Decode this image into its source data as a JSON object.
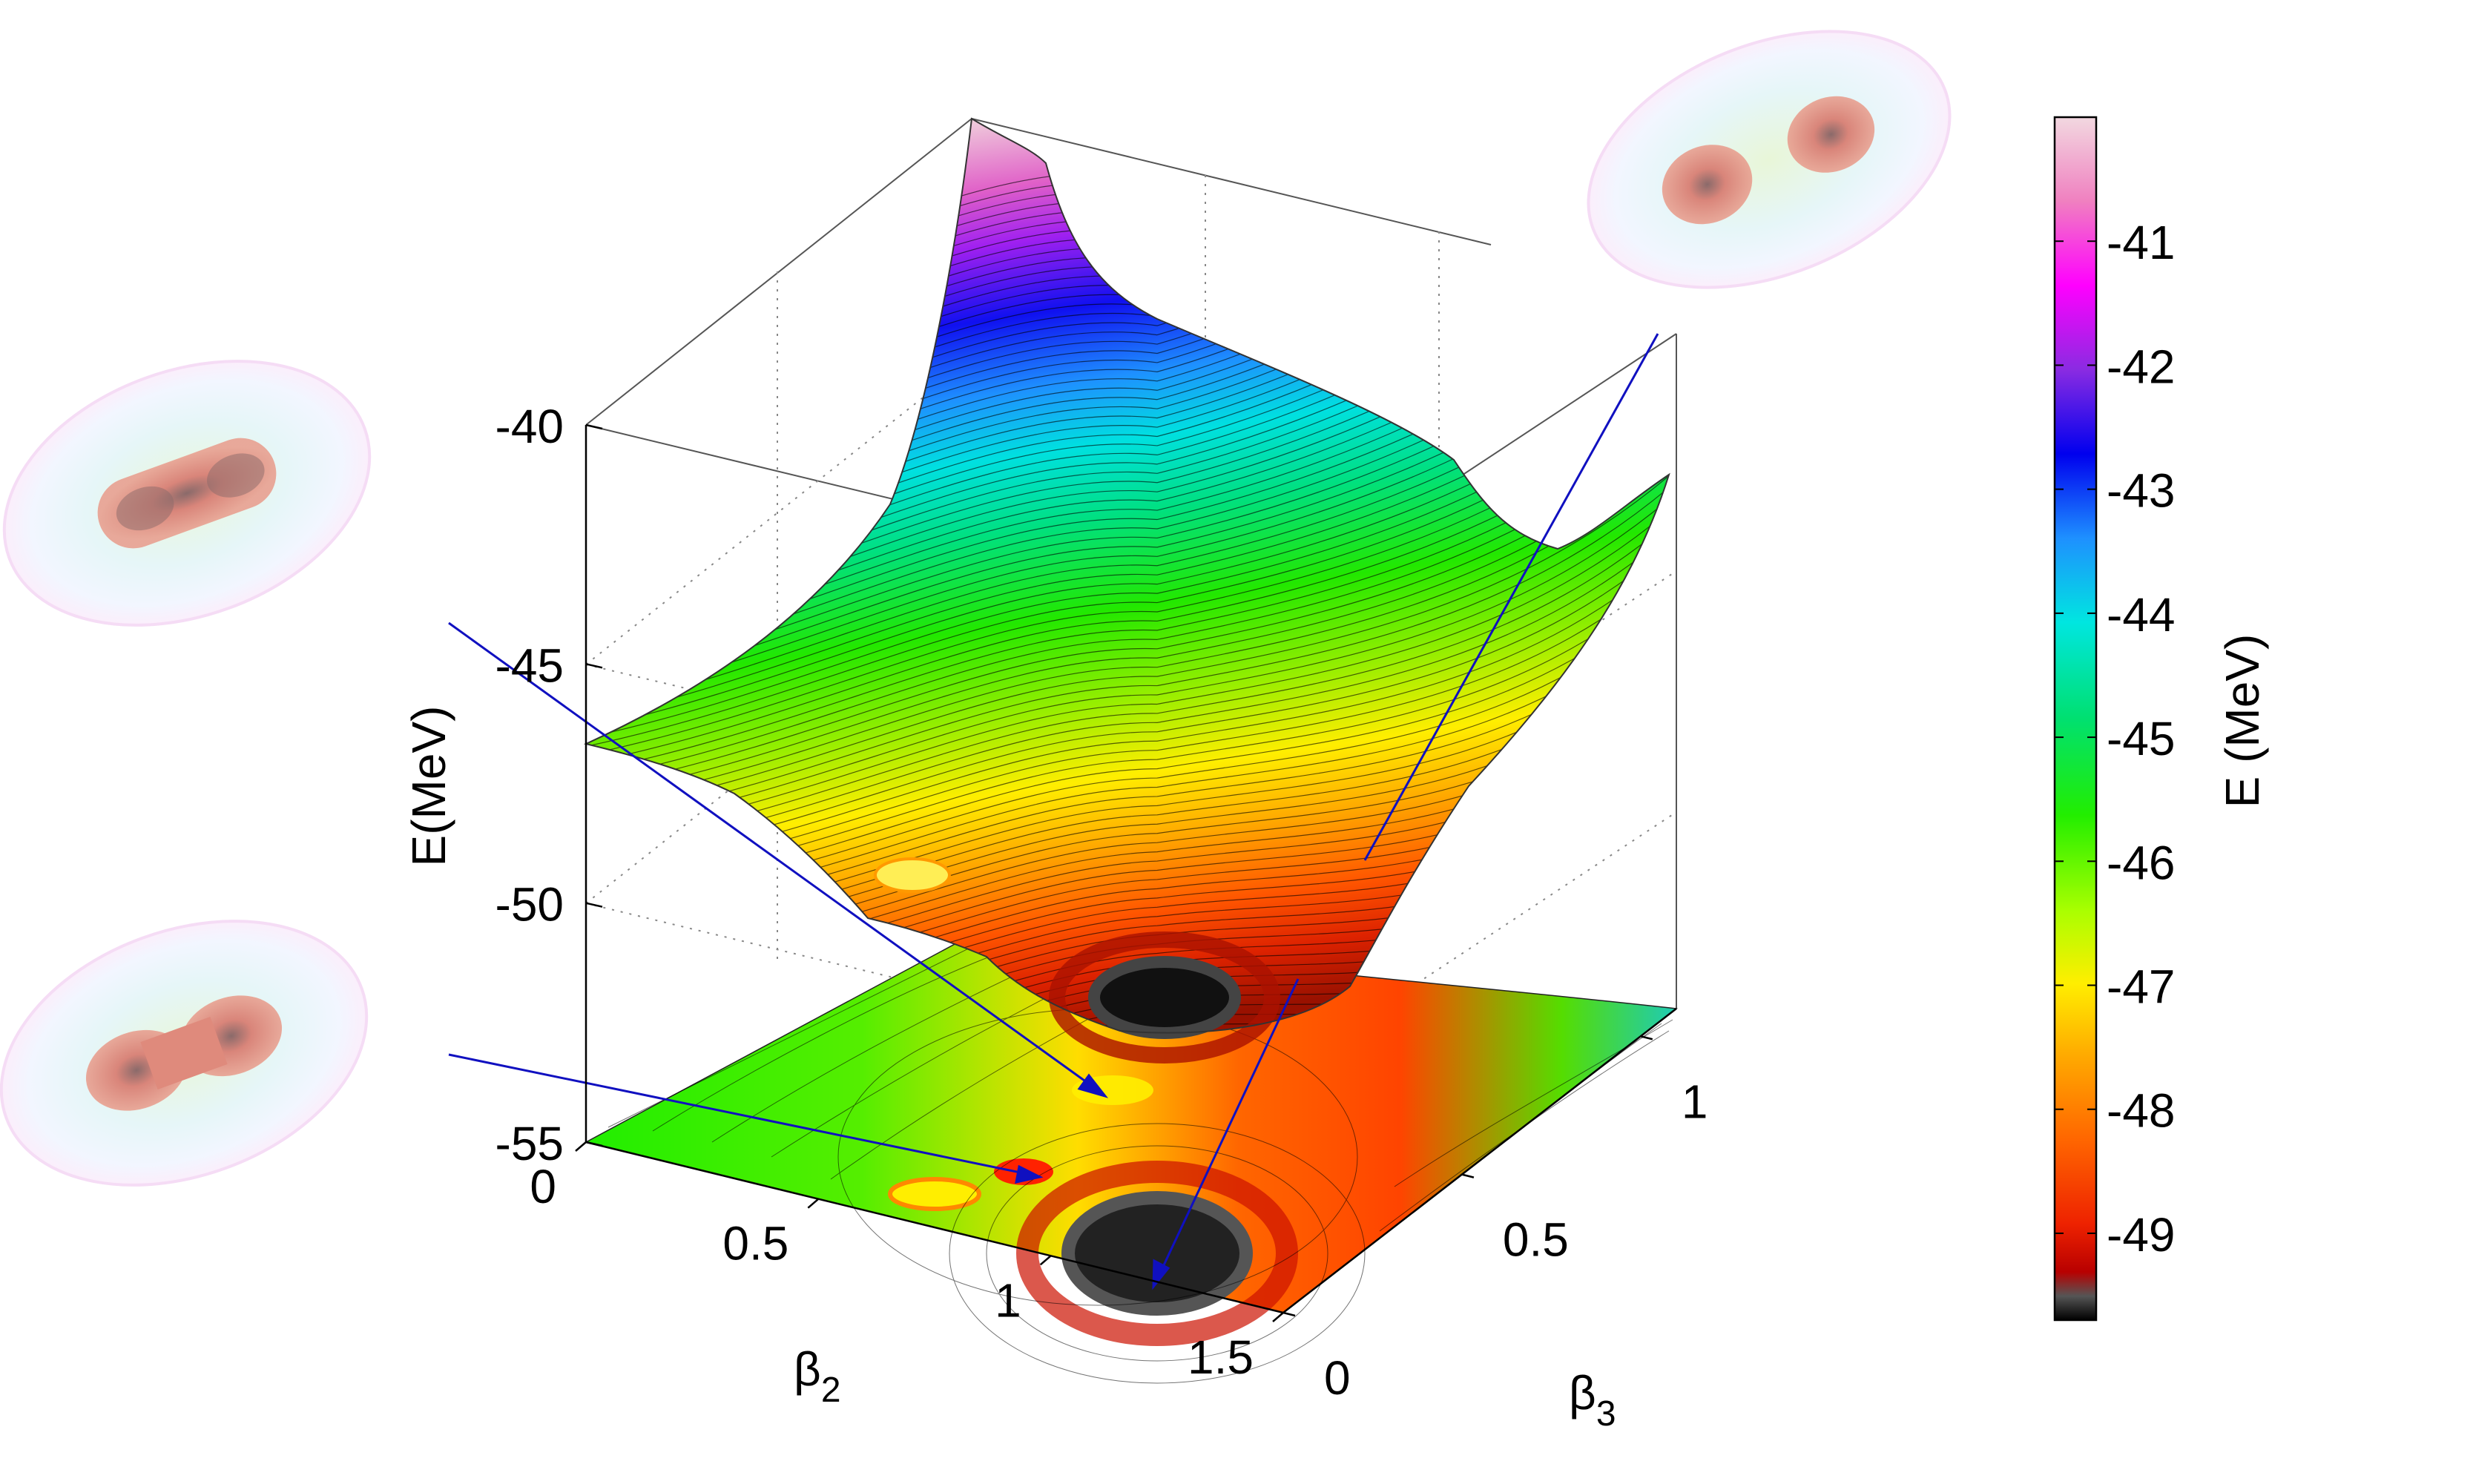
{
  "chart_data": {
    "type": "surface",
    "zlabel": "E(MeV)",
    "xlabel_base": "β",
    "xlabel_sub": "2",
    "ylabel_base": "β",
    "ylabel_sub": "3",
    "colorbar_label": "E (MeV)",
    "z_ticks": [
      -40,
      -45,
      -50,
      -55
    ],
    "z_range": [
      -55,
      -38
    ],
    "x_ticks": [
      0,
      0.5,
      1,
      1.5
    ],
    "x_range": [
      0,
      1.5
    ],
    "y_ticks": [
      0,
      0.5,
      1
    ],
    "y_range": [
      0,
      1.1
    ],
    "colorbar_ticks": [
      -41,
      -42,
      -43,
      -44,
      -45,
      -46,
      -47,
      -48,
      -49
    ],
    "colorbar_range": [
      -49.7,
      -40.0
    ],
    "grid": "dotted",
    "colormap": [
      "#000000",
      "#7f7f7f",
      "#cc0000",
      "#ff4500",
      "#ff8c00",
      "#ffd700",
      "#ffff00",
      "#7fff00",
      "#00ee00",
      "#00ee88",
      "#00e5e5",
      "#1e90ff",
      "#0000ff",
      "#8a2be2",
      "#ff00ff",
      "#f0d0d8"
    ],
    "surface_profile": {
      "beta2": [
        0,
        0.25,
        0.5,
        0.75,
        1.0,
        1.25,
        1.5
      ],
      "E_at_beta3_0": [
        -46.5,
        -47.2,
        -48.1,
        -49.3,
        -49.7,
        -49.0,
        -47.5
      ],
      "E_at_beta3_1": [
        -39.0,
        -42.5,
        -44.8,
        -45.8,
        -46.5,
        -44.0,
        -42.0
      ]
    },
    "insets": [
      {
        "name": "density-inset-top-right",
        "shape": "two-lobe-separated"
      },
      {
        "name": "density-inset-upper-left",
        "shape": "elongated"
      },
      {
        "name": "density-inset-lower-left",
        "shape": "two-lobe-necked"
      }
    ]
  }
}
